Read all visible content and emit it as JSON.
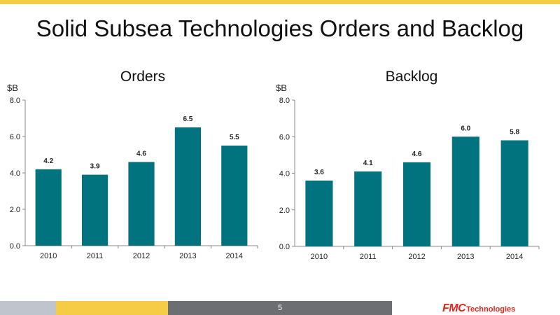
{
  "slide": {
    "title": "Solid Subsea Technologies Orders and Backlog",
    "page_number": "5",
    "logo_primary": "FMC",
    "logo_secondary": "Technologies",
    "footer_colors": [
      "#bfc5cd",
      "#f5cc46",
      "#6d6e71"
    ],
    "accent_color": "#f5cc46"
  },
  "chart_data": [
    {
      "type": "bar",
      "title": "Orders",
      "ylabel": "$B",
      "categories": [
        "2010",
        "2011",
        "2012",
        "2013",
        "2014"
      ],
      "values": [
        4.2,
        3.9,
        4.6,
        6.5,
        5.5
      ],
      "value_labels": [
        "4.2",
        "3.9",
        "4.6",
        "6.5",
        "5.5"
      ],
      "ylim": [
        0,
        8
      ],
      "yticks": [
        "0.0",
        "2.0",
        "4.0",
        "6.0",
        "8.0"
      ],
      "bar_color": "#00737f",
      "grid": false
    },
    {
      "type": "bar",
      "title": "Backlog",
      "ylabel": "$B",
      "categories": [
        "2010",
        "2011",
        "2012",
        "2013",
        "2014"
      ],
      "values": [
        3.6,
        4.1,
        4.6,
        6.0,
        5.8
      ],
      "value_labels": [
        "3.6",
        "4.1",
        "4.6",
        "6.0",
        "5.8"
      ],
      "ylim": [
        0,
        8
      ],
      "yticks": [
        "0.0",
        "2.0",
        "4.0",
        "6.0",
        "8.0"
      ],
      "bar_color": "#00737f",
      "grid": false
    }
  ]
}
